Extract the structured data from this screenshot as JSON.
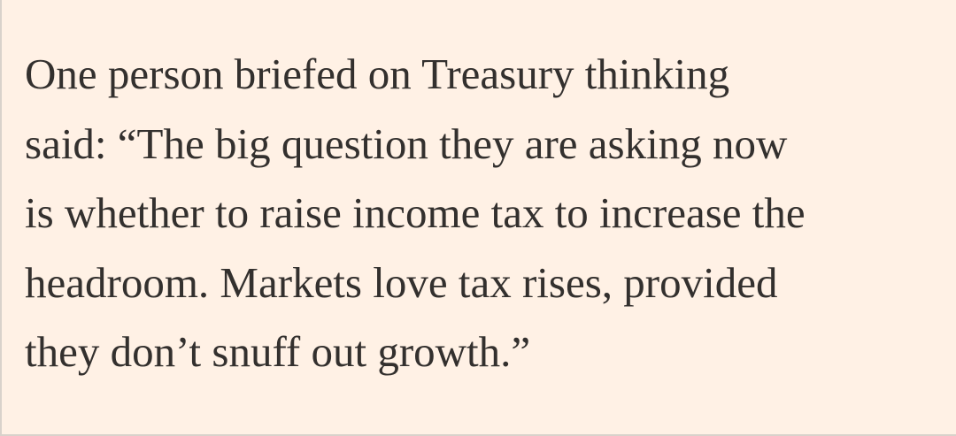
{
  "paragraph": {
    "lines": [
      "One person briefed on Treasury thinking",
      "said: “The big question they are asking now",
      "is whether to raise income tax to increase the",
      "headroom. Markets love tax rises, provided",
      "they don’t snuff out growth.”"
    ]
  }
}
